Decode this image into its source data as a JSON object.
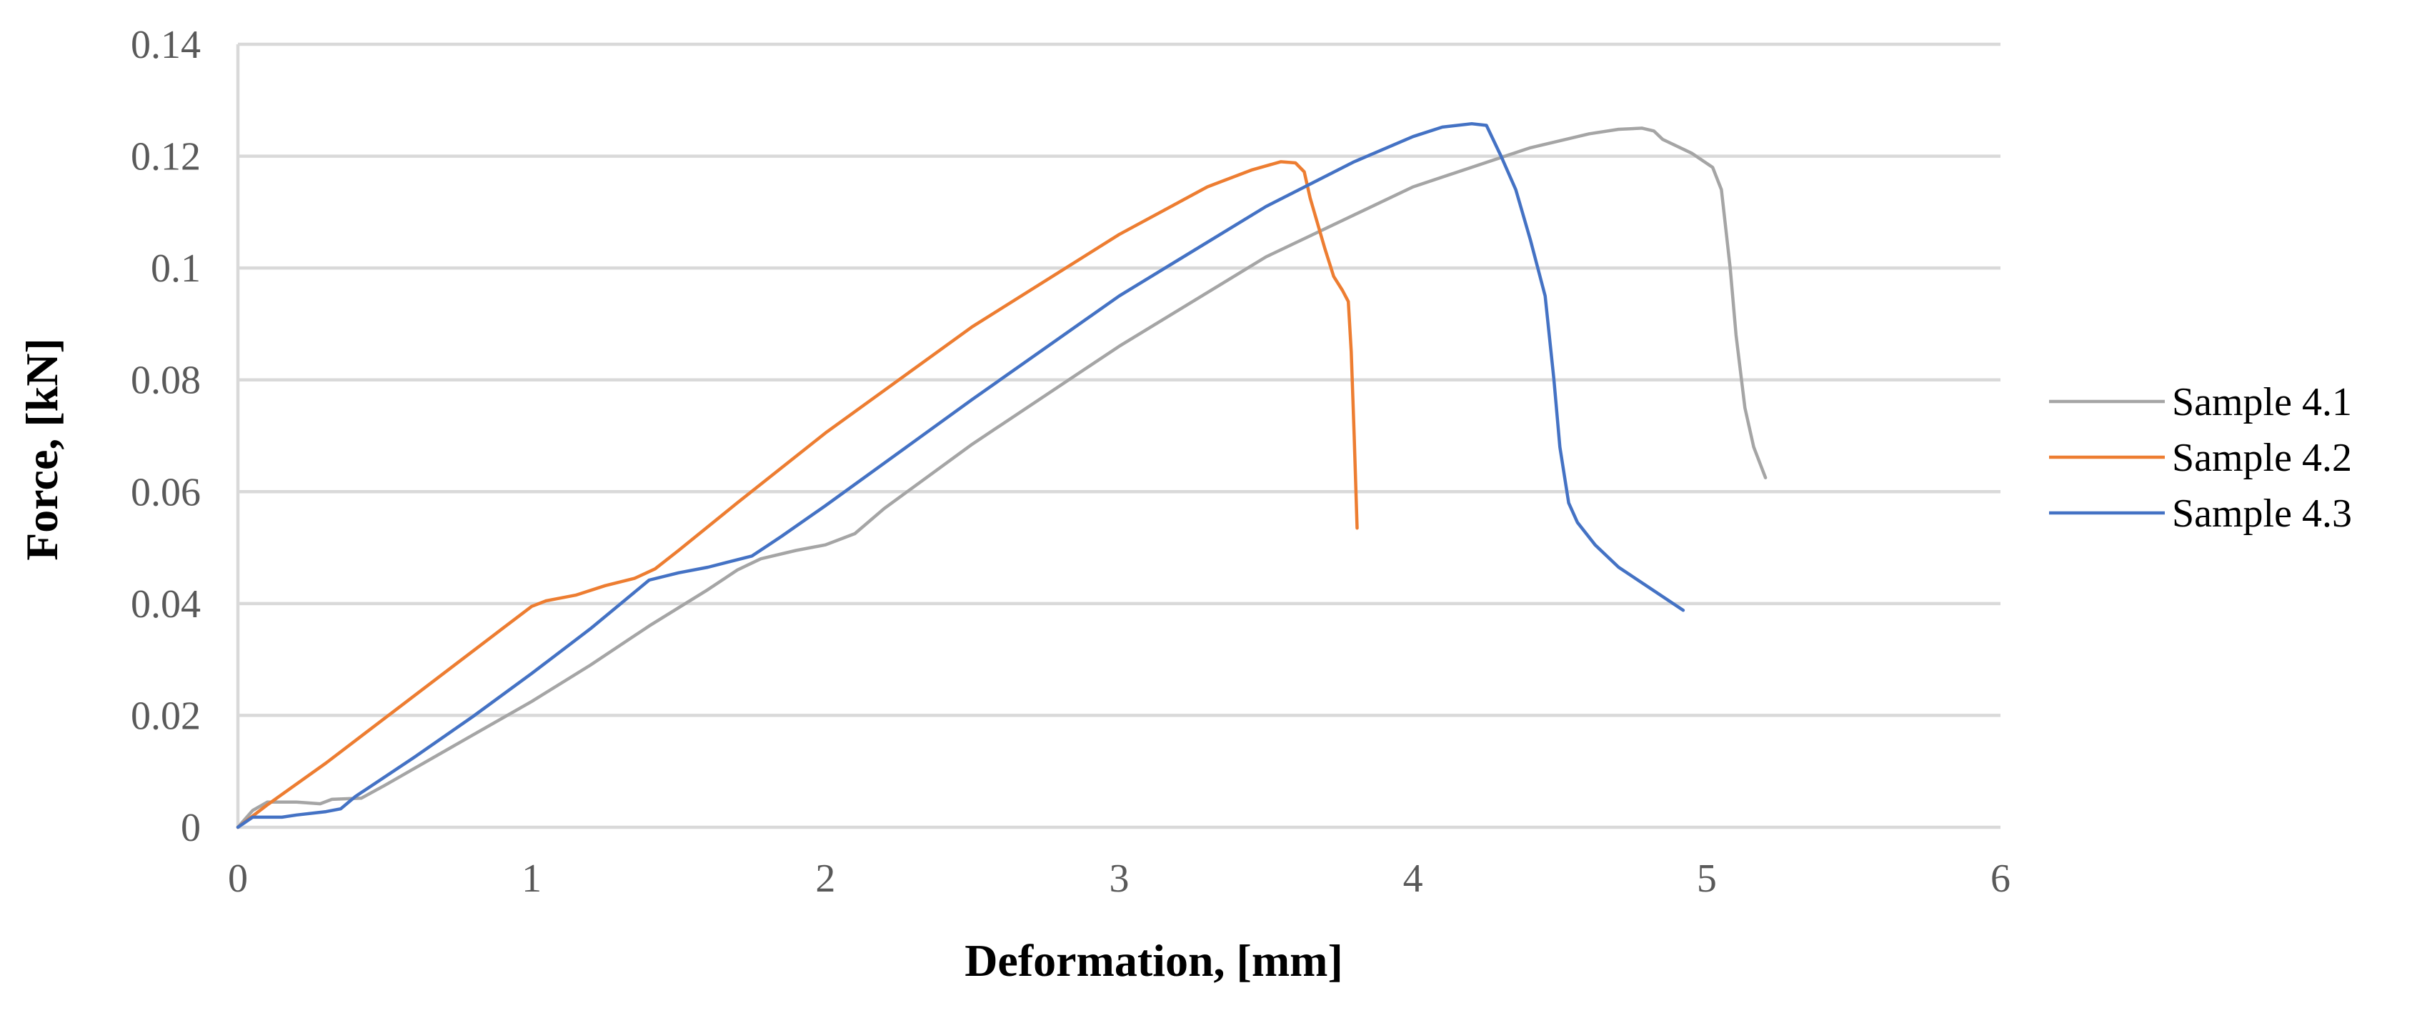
{
  "chart_data": {
    "type": "line",
    "title": "",
    "xlabel": "Deformation, [mm]",
    "ylabel": "Force, [kN]",
    "xlim": [
      0,
      6
    ],
    "ylim": [
      0,
      0.14
    ],
    "x_ticks": [
      "0",
      "1",
      "2",
      "3",
      "4",
      "5",
      "6"
    ],
    "y_ticks": [
      "0",
      "0.02",
      "0.04",
      "0.06",
      "0.08",
      "0.1",
      "0.12",
      "0.14"
    ],
    "grid": "horizontal",
    "legend_position": "right",
    "series": [
      {
        "name": "Sample 4.1",
        "color": "#a5a5a5",
        "points": [
          [
            0,
            0
          ],
          [
            0.05,
            0.003
          ],
          [
            0.1,
            0.0045
          ],
          [
            0.2,
            0.0045
          ],
          [
            0.28,
            0.0042
          ],
          [
            0.32,
            0.005
          ],
          [
            0.42,
            0.0052
          ],
          [
            0.5,
            0.0075
          ],
          [
            0.6,
            0.0105
          ],
          [
            0.8,
            0.0165
          ],
          [
            1.0,
            0.0225
          ],
          [
            1.2,
            0.029
          ],
          [
            1.4,
            0.036
          ],
          [
            1.6,
            0.0425
          ],
          [
            1.7,
            0.046
          ],
          [
            1.78,
            0.048
          ],
          [
            1.9,
            0.0495
          ],
          [
            2.0,
            0.0505
          ],
          [
            2.1,
            0.0525
          ],
          [
            2.2,
            0.057
          ],
          [
            2.5,
            0.0685
          ],
          [
            3.0,
            0.086
          ],
          [
            3.5,
            0.102
          ],
          [
            4.0,
            0.1145
          ],
          [
            4.4,
            0.1215
          ],
          [
            4.6,
            0.124
          ],
          [
            4.7,
            0.1248
          ],
          [
            4.78,
            0.125
          ],
          [
            4.82,
            0.1245
          ],
          [
            4.85,
            0.123
          ],
          [
            4.95,
            0.1205
          ],
          [
            5.02,
            0.118
          ],
          [
            5.05,
            0.114
          ],
          [
            5.08,
            0.1
          ],
          [
            5.1,
            0.088
          ],
          [
            5.13,
            0.075
          ],
          [
            5.16,
            0.068
          ],
          [
            5.2,
            0.0625
          ]
        ]
      },
      {
        "name": "Sample 4.2",
        "color": "#ed7d31",
        "points": [
          [
            0,
            0
          ],
          [
            0.1,
            0.004
          ],
          [
            0.3,
            0.0115
          ],
          [
            0.5,
            0.0195
          ],
          [
            0.7,
            0.0275
          ],
          [
            0.9,
            0.0355
          ],
          [
            1.0,
            0.0395
          ],
          [
            1.05,
            0.0405
          ],
          [
            1.15,
            0.0415
          ],
          [
            1.25,
            0.0432
          ],
          [
            1.35,
            0.0445
          ],
          [
            1.42,
            0.0462
          ],
          [
            1.5,
            0.0495
          ],
          [
            1.7,
            0.058
          ],
          [
            2.0,
            0.0705
          ],
          [
            2.5,
            0.0895
          ],
          [
            3.0,
            0.106
          ],
          [
            3.3,
            0.1145
          ],
          [
            3.45,
            0.1175
          ],
          [
            3.55,
            0.119
          ],
          [
            3.6,
            0.1188
          ],
          [
            3.63,
            0.1172
          ],
          [
            3.65,
            0.1125
          ],
          [
            3.7,
            0.1035
          ],
          [
            3.73,
            0.0985
          ],
          [
            3.76,
            0.096
          ],
          [
            3.78,
            0.094
          ],
          [
            3.79,
            0.085
          ],
          [
            3.8,
            0.07
          ],
          [
            3.81,
            0.0535
          ]
        ]
      },
      {
        "name": "Sample 4.3",
        "color": "#4472c4",
        "points": [
          [
            0,
            0
          ],
          [
            0.05,
            0.0018
          ],
          [
            0.15,
            0.0018
          ],
          [
            0.2,
            0.0022
          ],
          [
            0.3,
            0.0028
          ],
          [
            0.35,
            0.0033
          ],
          [
            0.4,
            0.0055
          ],
          [
            0.6,
            0.0125
          ],
          [
            0.8,
            0.0198
          ],
          [
            1.0,
            0.0275
          ],
          [
            1.2,
            0.0355
          ],
          [
            1.4,
            0.0442
          ],
          [
            1.5,
            0.0455
          ],
          [
            1.6,
            0.0465
          ],
          [
            1.75,
            0.0485
          ],
          [
            1.85,
            0.052
          ],
          [
            2.0,
            0.0575
          ],
          [
            2.5,
            0.0765
          ],
          [
            3.0,
            0.095
          ],
          [
            3.5,
            0.111
          ],
          [
            3.8,
            0.119
          ],
          [
            4.0,
            0.1235
          ],
          [
            4.1,
            0.1252
          ],
          [
            4.2,
            0.1258
          ],
          [
            4.25,
            0.1255
          ],
          [
            4.3,
            0.12
          ],
          [
            4.35,
            0.114
          ],
          [
            4.4,
            0.105
          ],
          [
            4.45,
            0.095
          ],
          [
            4.48,
            0.08
          ],
          [
            4.5,
            0.068
          ],
          [
            4.53,
            0.058
          ],
          [
            4.56,
            0.0545
          ],
          [
            4.62,
            0.0505
          ],
          [
            4.7,
            0.0465
          ],
          [
            4.8,
            0.043
          ],
          [
            4.92,
            0.0388
          ]
        ]
      }
    ]
  }
}
